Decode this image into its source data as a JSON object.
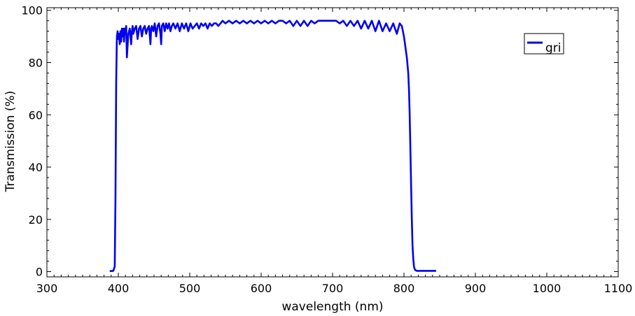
{
  "chart_data": {
    "type": "line",
    "xlabel": "wavelength (nm)",
    "ylabel": "Transmission (%)",
    "xlim": [
      300,
      1100
    ],
    "ylim": [
      -2,
      101
    ],
    "xticks": [
      300,
      400,
      500,
      600,
      700,
      800,
      900,
      1000,
      1100
    ],
    "xtick_labels": [
      "300",
      "400",
      "500",
      "600",
      "700",
      "800",
      "900",
      "1000",
      "1100"
    ],
    "yticks": [
      0,
      20,
      40,
      60,
      80,
      100
    ],
    "ytick_labels": [
      "0",
      "20",
      "40",
      "60",
      "80",
      "100"
    ],
    "grid": false,
    "legend_position": "top-right",
    "series": [
      {
        "name": "gri",
        "color": "#0000ee",
        "x": [
          388,
          393,
          395,
          396,
          397,
          398,
          399,
          400,
          401,
          402,
          403,
          404,
          405,
          406,
          407,
          408,
          409,
          410,
          411,
          412,
          414,
          416,
          418,
          419,
          420,
          421,
          423,
          425,
          427,
          429,
          431,
          433,
          435,
          437,
          439,
          441,
          443,
          445,
          446,
          447,
          449,
          451,
          453,
          455,
          457,
          459,
          460,
          461,
          463,
          465,
          467,
          469,
          471,
          473,
          475,
          477,
          480,
          483,
          486,
          489,
          492,
          495,
          498,
          501,
          504,
          507,
          510,
          513,
          516,
          519,
          522,
          525,
          528,
          531,
          534,
          537,
          540,
          543,
          546,
          550,
          555,
          560,
          565,
          570,
          575,
          580,
          585,
          590,
          595,
          600,
          605,
          610,
          615,
          620,
          625,
          630,
          635,
          640,
          645,
          650,
          655,
          660,
          665,
          670,
          675,
          680,
          685,
          690,
          695,
          700,
          705,
          710,
          715,
          720,
          725,
          730,
          735,
          740,
          745,
          750,
          755,
          760,
          765,
          770,
          775,
          780,
          785,
          790,
          794,
          797,
          800,
          802,
          804,
          806,
          807,
          808,
          809,
          810,
          811,
          812,
          813,
          814,
          815,
          816,
          817,
          818,
          820,
          825,
          835,
          845
        ],
        "y": [
          0.2,
          0.3,
          2,
          28,
          72,
          90,
          92,
          89,
          91,
          87,
          92,
          88,
          93,
          90,
          93,
          88,
          93,
          91,
          94,
          82,
          91,
          93,
          87,
          92,
          94,
          91,
          93,
          94,
          89,
          93,
          94,
          90,
          93,
          94,
          91,
          93,
          94,
          87,
          93,
          94,
          92,
          95,
          90,
          94,
          95,
          91,
          87,
          94,
          95,
          92,
          95,
          93,
          95,
          92,
          94,
          95,
          93,
          95,
          92,
          95,
          93,
          95,
          92,
          95,
          93,
          94,
          95,
          93,
          95,
          94,
          95,
          93,
          95,
          94,
          95,
          95,
          94,
          95,
          96,
          95,
          96,
          95,
          96,
          95,
          96,
          95,
          96,
          95,
          96,
          95,
          96,
          95,
          96,
          95,
          96,
          96,
          95,
          96,
          94,
          96,
          94,
          96,
          94,
          96,
          95,
          96,
          96,
          96,
          96,
          96,
          96,
          95,
          96,
          94,
          96,
          94,
          96,
          93,
          96,
          93,
          96,
          92,
          96,
          92,
          95,
          92,
          95,
          91,
          95,
          94,
          90,
          86,
          82,
          76,
          70,
          60,
          47,
          33,
          20,
          10,
          5,
          2,
          1,
          0.6,
          0.4,
          0.3,
          0.3,
          0.3,
          0.3,
          0.3
        ]
      }
    ]
  }
}
